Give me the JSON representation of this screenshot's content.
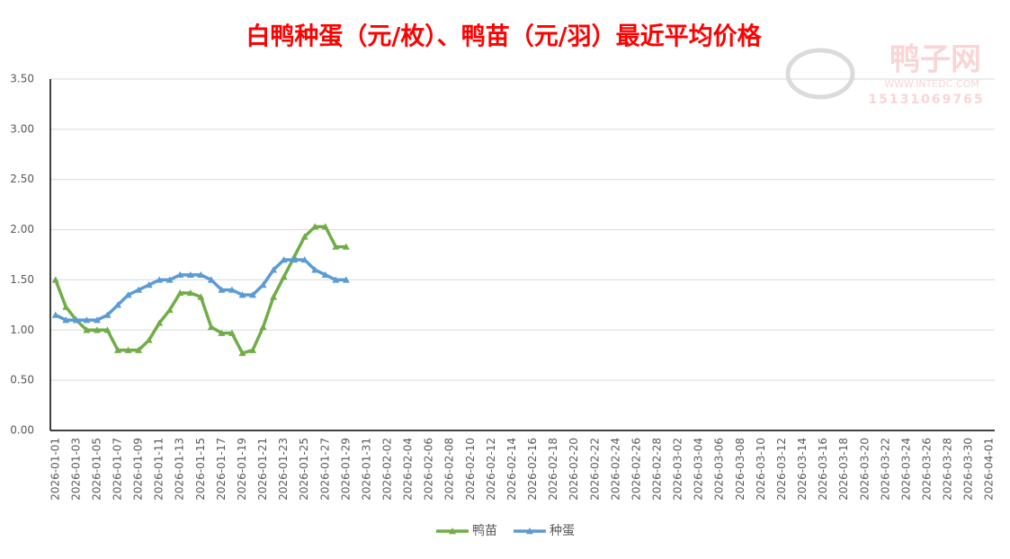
{
  "chart_data": {
    "type": "line",
    "title": "白鸭种蛋（元/枚）、鸭苗（元/羽）最近平均价格",
    "watermark": {
      "name": "鸭子网",
      "site": "WWW.INTEDC.COM",
      "phone": "15131069765"
    },
    "categories": [
      "2026-01-01",
      null,
      "2026-01-03",
      null,
      "2026-01-05",
      null,
      "2026-01-07",
      null,
      "2026-01-09",
      null,
      "2026-01-11",
      null,
      "2026-01-13",
      null,
      "2026-01-15",
      null,
      "2026-01-17",
      null,
      "2026-01-19",
      null,
      "2026-01-21",
      null,
      "2026-01-23",
      null,
      "2026-01-25",
      null,
      "2026-01-27",
      null,
      "2026-01-29",
      null,
      "2026-01-31",
      null,
      "2026-02-02",
      null,
      "2026-02-04",
      null,
      "2026-02-06",
      null,
      "2026-02-08",
      null,
      "2026-02-10",
      null,
      "2026-02-12",
      null,
      "2026-02-14",
      null,
      "2026-02-16",
      null,
      "2026-02-18",
      null,
      "2026-02-20",
      null,
      "2026-02-22",
      null,
      "2026-02-24",
      null,
      "2026-02-26",
      null,
      "2026-02-28",
      null,
      "2026-03-02",
      null,
      "2026-03-04",
      null,
      "2026-03-06",
      null,
      "2026-03-08",
      null,
      "2026-03-10",
      null,
      "2026-03-12",
      null,
      "2026-03-14",
      null,
      "2026-03-16",
      null,
      "2026-03-18",
      null,
      "2026-03-20",
      null,
      "2026-03-22",
      null,
      "2026-03-24",
      null,
      "2026-03-26",
      null,
      "2026-03-28",
      null,
      "2026-03-30",
      null,
      "2026-04-01"
    ],
    "series": [
      {
        "name": "鸭苗",
        "color": "#70ad47",
        "values": [
          1.5,
          1.23,
          1.1,
          1.0,
          1.0,
          1.0,
          0.8,
          0.8,
          0.8,
          0.9,
          1.07,
          1.2,
          1.37,
          1.37,
          1.33,
          1.03,
          0.97,
          0.97,
          0.77,
          0.8,
          1.03,
          1.33,
          1.53,
          1.73,
          1.93,
          2.03,
          2.03,
          1.83,
          1.83,
          null,
          null,
          null,
          null,
          null,
          null,
          null,
          null,
          null,
          null,
          null,
          null,
          null,
          null,
          null,
          null,
          null,
          null,
          null,
          null,
          null,
          null,
          null,
          null,
          null,
          null,
          null,
          null,
          null,
          null,
          null,
          null,
          null,
          null,
          null,
          null,
          null,
          null,
          null,
          null,
          null,
          null,
          null,
          null,
          null,
          null,
          null,
          null,
          null,
          null,
          null,
          null,
          null,
          null,
          null,
          null,
          null,
          null,
          null,
          null,
          null,
          null
        ]
      },
      {
        "name": "种蛋",
        "color": "#5b9bd5",
        "values": [
          1.15,
          1.1,
          1.1,
          1.1,
          1.1,
          1.15,
          1.25,
          1.35,
          1.4,
          1.45,
          1.5,
          1.5,
          1.55,
          1.55,
          1.55,
          1.5,
          1.4,
          1.4,
          1.35,
          1.35,
          1.45,
          1.6,
          1.7,
          1.7,
          1.7,
          1.6,
          1.55,
          1.5,
          1.5,
          null,
          null,
          null,
          null,
          null,
          null,
          null,
          null,
          null,
          null,
          null,
          null,
          null,
          null,
          null,
          null,
          null,
          null,
          null,
          null,
          null,
          null,
          null,
          null,
          null,
          null,
          null,
          null,
          null,
          null,
          null,
          null,
          null,
          null,
          null,
          null,
          null,
          null,
          null,
          null,
          null,
          null,
          null,
          null,
          null,
          null,
          null,
          null,
          null,
          null,
          null,
          null,
          null,
          null,
          null,
          null,
          null,
          null,
          null,
          null,
          null,
          null
        ]
      }
    ],
    "ylim": [
      0,
      3.5
    ],
    "yticks": [
      {
        "value": 0,
        "label": "0.00"
      },
      {
        "value": 0.5,
        "label": "0.50"
      },
      {
        "value": 1,
        "label": "1.00"
      },
      {
        "value": 1.5,
        "label": "1.50"
      },
      {
        "value": 2,
        "label": "2.00"
      },
      {
        "value": 2.5,
        "label": "2.50"
      },
      {
        "value": 3,
        "label": "3.00"
      },
      {
        "value": 3.5,
        "label": "3.50"
      }
    ],
    "grid": true,
    "legend": "bottom"
  }
}
